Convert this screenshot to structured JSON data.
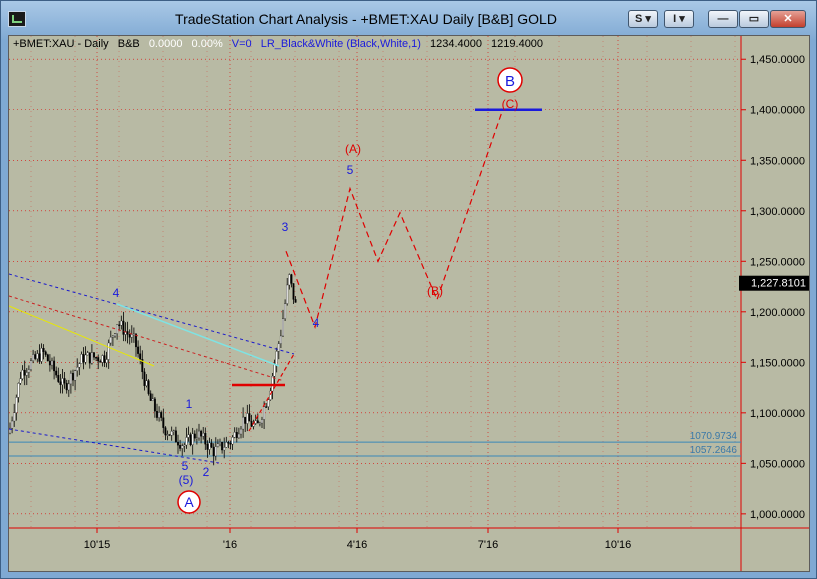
{
  "window": {
    "title": "TradeStation Chart Analysis - +BMET:XAU Daily [B&B] GOLD",
    "buttons": {
      "study": "S",
      "indicator": "I",
      "minimize": "—",
      "restore": "▭",
      "close": "✕"
    }
  },
  "info_bar": {
    "symbol": "+BMET:XAU - Daily",
    "sub": "B&B",
    "change": "0.0000",
    "pct": "0.00%",
    "volume": "V=0",
    "indicator": "LR_Black&White (Black,White,1)",
    "value1": "1234.4000",
    "value2": "1219.4000"
  },
  "colors": {
    "bg": "#b8baa4",
    "bull": "#ffffff",
    "bear": "#000000",
    "red": "#e00000",
    "blue": "#1a1adc",
    "yellow": "#e8e800",
    "cyan": "#7fe3e3"
  },
  "chart_data": {
    "type": "candlestick",
    "x_ticks": [
      "10'15",
      "'16",
      "4'16",
      "7'16",
      "10'16"
    ],
    "y_ticks": [
      "1,450.0000",
      "1,400.0000",
      "1,350.0000",
      "1,300.0000",
      "1,250.0000",
      "1,200.0000",
      "1,150.0000",
      "1,100.0000",
      "1,050.0000",
      "1,000.0000"
    ],
    "y_tick_values": [
      1450,
      1400,
      1350,
      1300,
      1250,
      1200,
      1150,
      1100,
      1050,
      1000
    ],
    "ylim": [
      986,
      1473
    ],
    "last_price": "1,227.8101",
    "last_value": 1227.8101,
    "support_lines": [
      {
        "label": "1070.9734",
        "value": 1070.9734
      },
      {
        "label": "1057.2646",
        "value": 1057.2646
      }
    ],
    "wave_labels": {
      "A": "A",
      "B": "B",
      "w4_top": "4",
      "w1": "1",
      "w5": "5",
      "w5p": "(5)",
      "w2": "2",
      "w3": "3",
      "w4b": "4",
      "w5b": "5",
      "A_paren": "(A)",
      "B_paren": "(B)",
      "C_paren": "(C)"
    },
    "projection_path": [
      [
        "Jan 25 '16",
        1260
      ],
      [
        "Feb 13 '16",
        1185
      ],
      [
        "Mar 28 '16",
        1322
      ],
      [
        "Apr 25 '16",
        1250
      ],
      [
        "May 13 '16",
        1298
      ],
      [
        "Jun 20 '16",
        1212
      ],
      [
        "Jul 31 '16",
        1398
      ]
    ]
  }
}
